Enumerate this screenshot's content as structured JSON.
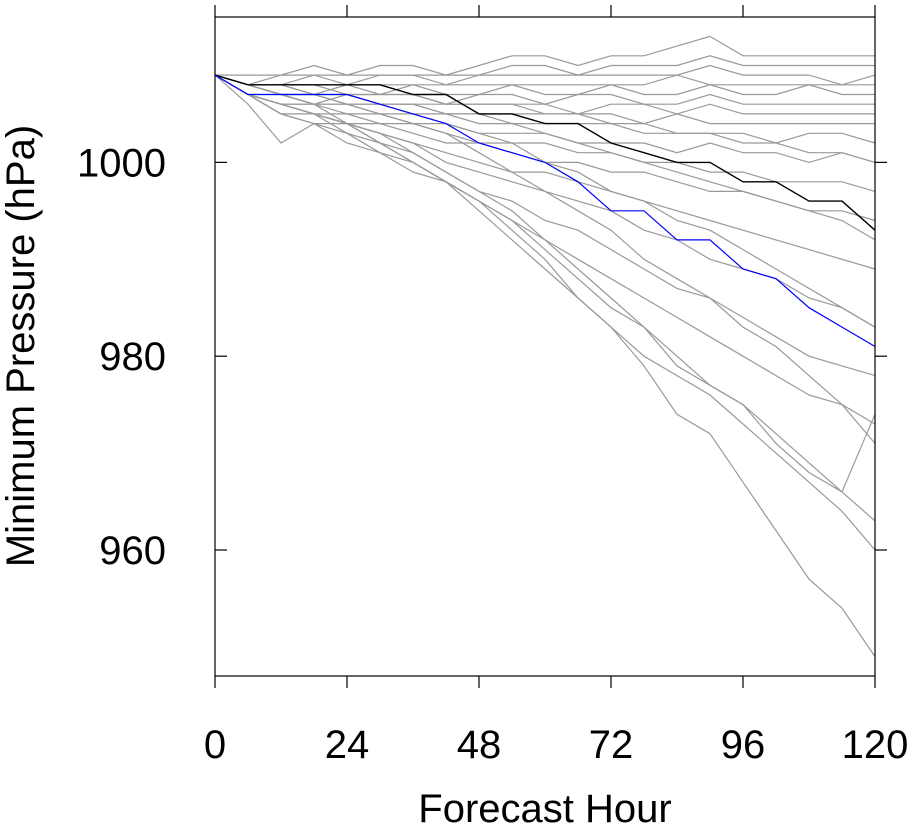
{
  "chart_data": {
    "type": "line",
    "xlabel": "Forecast Hour",
    "ylabel": "Minimum Pressure (hPa)",
    "xlim": [
      0,
      120
    ],
    "ylim": [
      947,
      1015
    ],
    "xticks": [
      0,
      24,
      48,
      72,
      96,
      120
    ],
    "yticks": [
      960,
      980,
      1000
    ],
    "x": [
      0,
      6,
      12,
      18,
      24,
      30,
      36,
      42,
      48,
      54,
      60,
      66,
      72,
      78,
      84,
      90,
      96,
      102,
      108,
      114,
      120
    ],
    "series": [
      {
        "color": "#000000",
        "values": [
          1009,
          1008,
          1008,
          1008,
          1008,
          1008,
          1007,
          1007,
          1005,
          1005,
          1004,
          1004,
          1002,
          1001,
          1000,
          1000,
          998,
          998,
          996,
          996,
          993
        ]
      },
      {
        "color": "#0000ff",
        "values": [
          1009,
          1007,
          1007,
          1007,
          1007,
          1006,
          1005,
          1004,
          1002,
          1001,
          1000,
          998,
          995,
          995,
          992,
          992,
          989,
          988,
          985,
          983,
          981
        ]
      },
      {
        "color": "#999999",
        "values": [
          1009,
          1009,
          1009,
          1010,
          1009,
          1010,
          1010,
          1009,
          1010,
          1011,
          1011,
          1010,
          1011,
          1011,
          1012,
          1013,
          1011,
          1011,
          1011,
          1011,
          1011
        ]
      },
      {
        "color": "#999999",
        "values": [
          1009,
          1008,
          1009,
          1009,
          1009,
          1009,
          1009,
          1009,
          1009,
          1010,
          1010,
          1009,
          1010,
          1010,
          1010,
          1011,
          1010,
          1010,
          1010,
          1010,
          1010
        ]
      },
      {
        "color": "#999999",
        "values": [
          1009,
          1008,
          1008,
          1009,
          1008,
          1009,
          1009,
          1008,
          1009,
          1009,
          1009,
          1009,
          1009,
          1009,
          1009,
          1010,
          1009,
          1009,
          1009,
          1008,
          1009
        ]
      },
      {
        "color": "#999999",
        "values": [
          1009,
          1008,
          1008,
          1008,
          1008,
          1008,
          1008,
          1008,
          1008,
          1008,
          1008,
          1008,
          1008,
          1008,
          1009,
          1008,
          1008,
          1008,
          1008,
          1008,
          1008
        ]
      },
      {
        "color": "#999999",
        "values": [
          1009,
          1008,
          1008,
          1007,
          1008,
          1007,
          1008,
          1007,
          1007,
          1008,
          1007,
          1007,
          1008,
          1007,
          1007,
          1008,
          1007,
          1007,
          1008,
          1007,
          1007
        ]
      },
      {
        "color": "#999999",
        "values": [
          1009,
          1008,
          1007,
          1007,
          1007,
          1007,
          1007,
          1006,
          1007,
          1007,
          1006,
          1007,
          1007,
          1006,
          1006,
          1007,
          1006,
          1006,
          1006,
          1006,
          1006
        ]
      },
      {
        "color": "#999999",
        "values": [
          1009,
          1008,
          1007,
          1006,
          1007,
          1006,
          1006,
          1006,
          1006,
          1006,
          1006,
          1005,
          1006,
          1006,
          1005,
          1006,
          1005,
          1005,
          1005,
          1005,
          1005
        ]
      },
      {
        "color": "#999999",
        "values": [
          1009,
          1007,
          1007,
          1006,
          1006,
          1006,
          1006,
          1005,
          1005,
          1005,
          1005,
          1005,
          1005,
          1004,
          1005,
          1004,
          1004,
          1004,
          1004,
          1004,
          1004
        ]
      },
      {
        "color": "#999999",
        "values": [
          1009,
          1007,
          1006,
          1006,
          1006,
          1005,
          1005,
          1005,
          1004,
          1004,
          1004,
          1004,
          1004,
          1003,
          1003,
          1003,
          1003,
          1002,
          1003,
          1003,
          1002
        ]
      },
      {
        "color": "#999999",
        "values": [
          1009,
          1007,
          1006,
          1006,
          1005,
          1005,
          1004,
          1004,
          1003,
          1003,
          1003,
          1002,
          1002,
          1002,
          1001,
          1002,
          1001,
          1001,
          1000,
          1001,
          1000
        ]
      },
      {
        "color": "#999999",
        "values": [
          1009,
          1007,
          1006,
          1005,
          1005,
          1004,
          1004,
          1003,
          1002,
          1002,
          1002,
          1001,
          1001,
          1000,
          1000,
          999,
          999,
          998,
          998,
          998,
          997
        ]
      },
      {
        "color": "#999999",
        "values": [
          1009,
          1007,
          1005,
          1005,
          1004,
          1004,
          1003,
          1002,
          1002,
          1001,
          1000,
          1000,
          999,
          999,
          998,
          997,
          997,
          996,
          995,
          995,
          994
        ]
      },
      {
        "color": "#999999",
        "values": [
          1009,
          1006,
          1002,
          1004,
          1004,
          1003,
          1002,
          1001,
          1000,
          999,
          999,
          998,
          997,
          996,
          995,
          994,
          993,
          992,
          991,
          990,
          989
        ]
      },
      {
        "color": "#999999",
        "values": [
          1009,
          1007,
          1006,
          1005,
          1004,
          1003,
          1002,
          1000,
          999,
          998,
          997,
          996,
          995,
          993,
          992,
          990,
          989,
          988,
          986,
          985,
          983
        ]
      },
      {
        "color": "#999999",
        "values": [
          1009,
          1007,
          1006,
          1005,
          1003,
          1002,
          1001,
          999,
          997,
          996,
          994,
          993,
          991,
          989,
          987,
          986,
          984,
          982,
          980,
          979,
          978
        ]
      },
      {
        "color": "#999999",
        "values": [
          1009,
          1007,
          1005,
          1004,
          1002,
          1001,
          999,
          998,
          996,
          994,
          992,
          990,
          988,
          986,
          984,
          982,
          980,
          978,
          976,
          975,
          973
        ]
      },
      {
        "color": "#999999",
        "values": [
          1009,
          1007,
          1005,
          1004,
          1003,
          1001,
          1000,
          998,
          996,
          994,
          991,
          988,
          985,
          983,
          980,
          977,
          975,
          972,
          969,
          966,
          963
        ]
      },
      {
        "color": "#999999",
        "values": [
          1009,
          1007,
          1006,
          1005,
          1004,
          1002,
          1000,
          998,
          995,
          992,
          989,
          986,
          983,
          980,
          978,
          976,
          973,
          970,
          967,
          964,
          960
        ]
      },
      {
        "color": "#999999",
        "values": [
          1009,
          1007,
          1006,
          1005,
          1004,
          1002,
          1000,
          998,
          996,
          993,
          990,
          986,
          983,
          979,
          974,
          972,
          967,
          962,
          957,
          954,
          949
        ]
      },
      {
        "color": "#999999",
        "values": [
          1009,
          1008,
          1007,
          1006,
          1004,
          1003,
          1001,
          999,
          997,
          995,
          992,
          989,
          986,
          983,
          979,
          977,
          975,
          971,
          968,
          966,
          974
        ]
      },
      {
        "color": "#999999",
        "values": [
          1009,
          1008,
          1007,
          1007,
          1006,
          1005,
          1004,
          1003,
          1001,
          999,
          997,
          995,
          993,
          990,
          988,
          986,
          983,
          981,
          978,
          975,
          971
        ]
      },
      {
        "color": "#999999",
        "values": [
          1009,
          1008,
          1007,
          1007,
          1006,
          1006,
          1005,
          1004,
          1003,
          1002,
          1000,
          999,
          997,
          996,
          994,
          993,
          991,
          989,
          987,
          985,
          983
        ]
      },
      {
        "color": "#999999",
        "values": [
          1009,
          1008,
          1008,
          1007,
          1007,
          1006,
          1006,
          1005,
          1005,
          1004,
          1003,
          1002,
          1001,
          1000,
          999,
          998,
          997,
          996,
          995,
          994,
          992
        ]
      },
      {
        "color": "#999999",
        "values": [
          1009,
          1008,
          1008,
          1008,
          1007,
          1007,
          1007,
          1006,
          1006,
          1006,
          1005,
          1005,
          1004,
          1004,
          1003,
          1003,
          1002,
          1002,
          1001,
          1001,
          1000
        ]
      }
    ]
  }
}
